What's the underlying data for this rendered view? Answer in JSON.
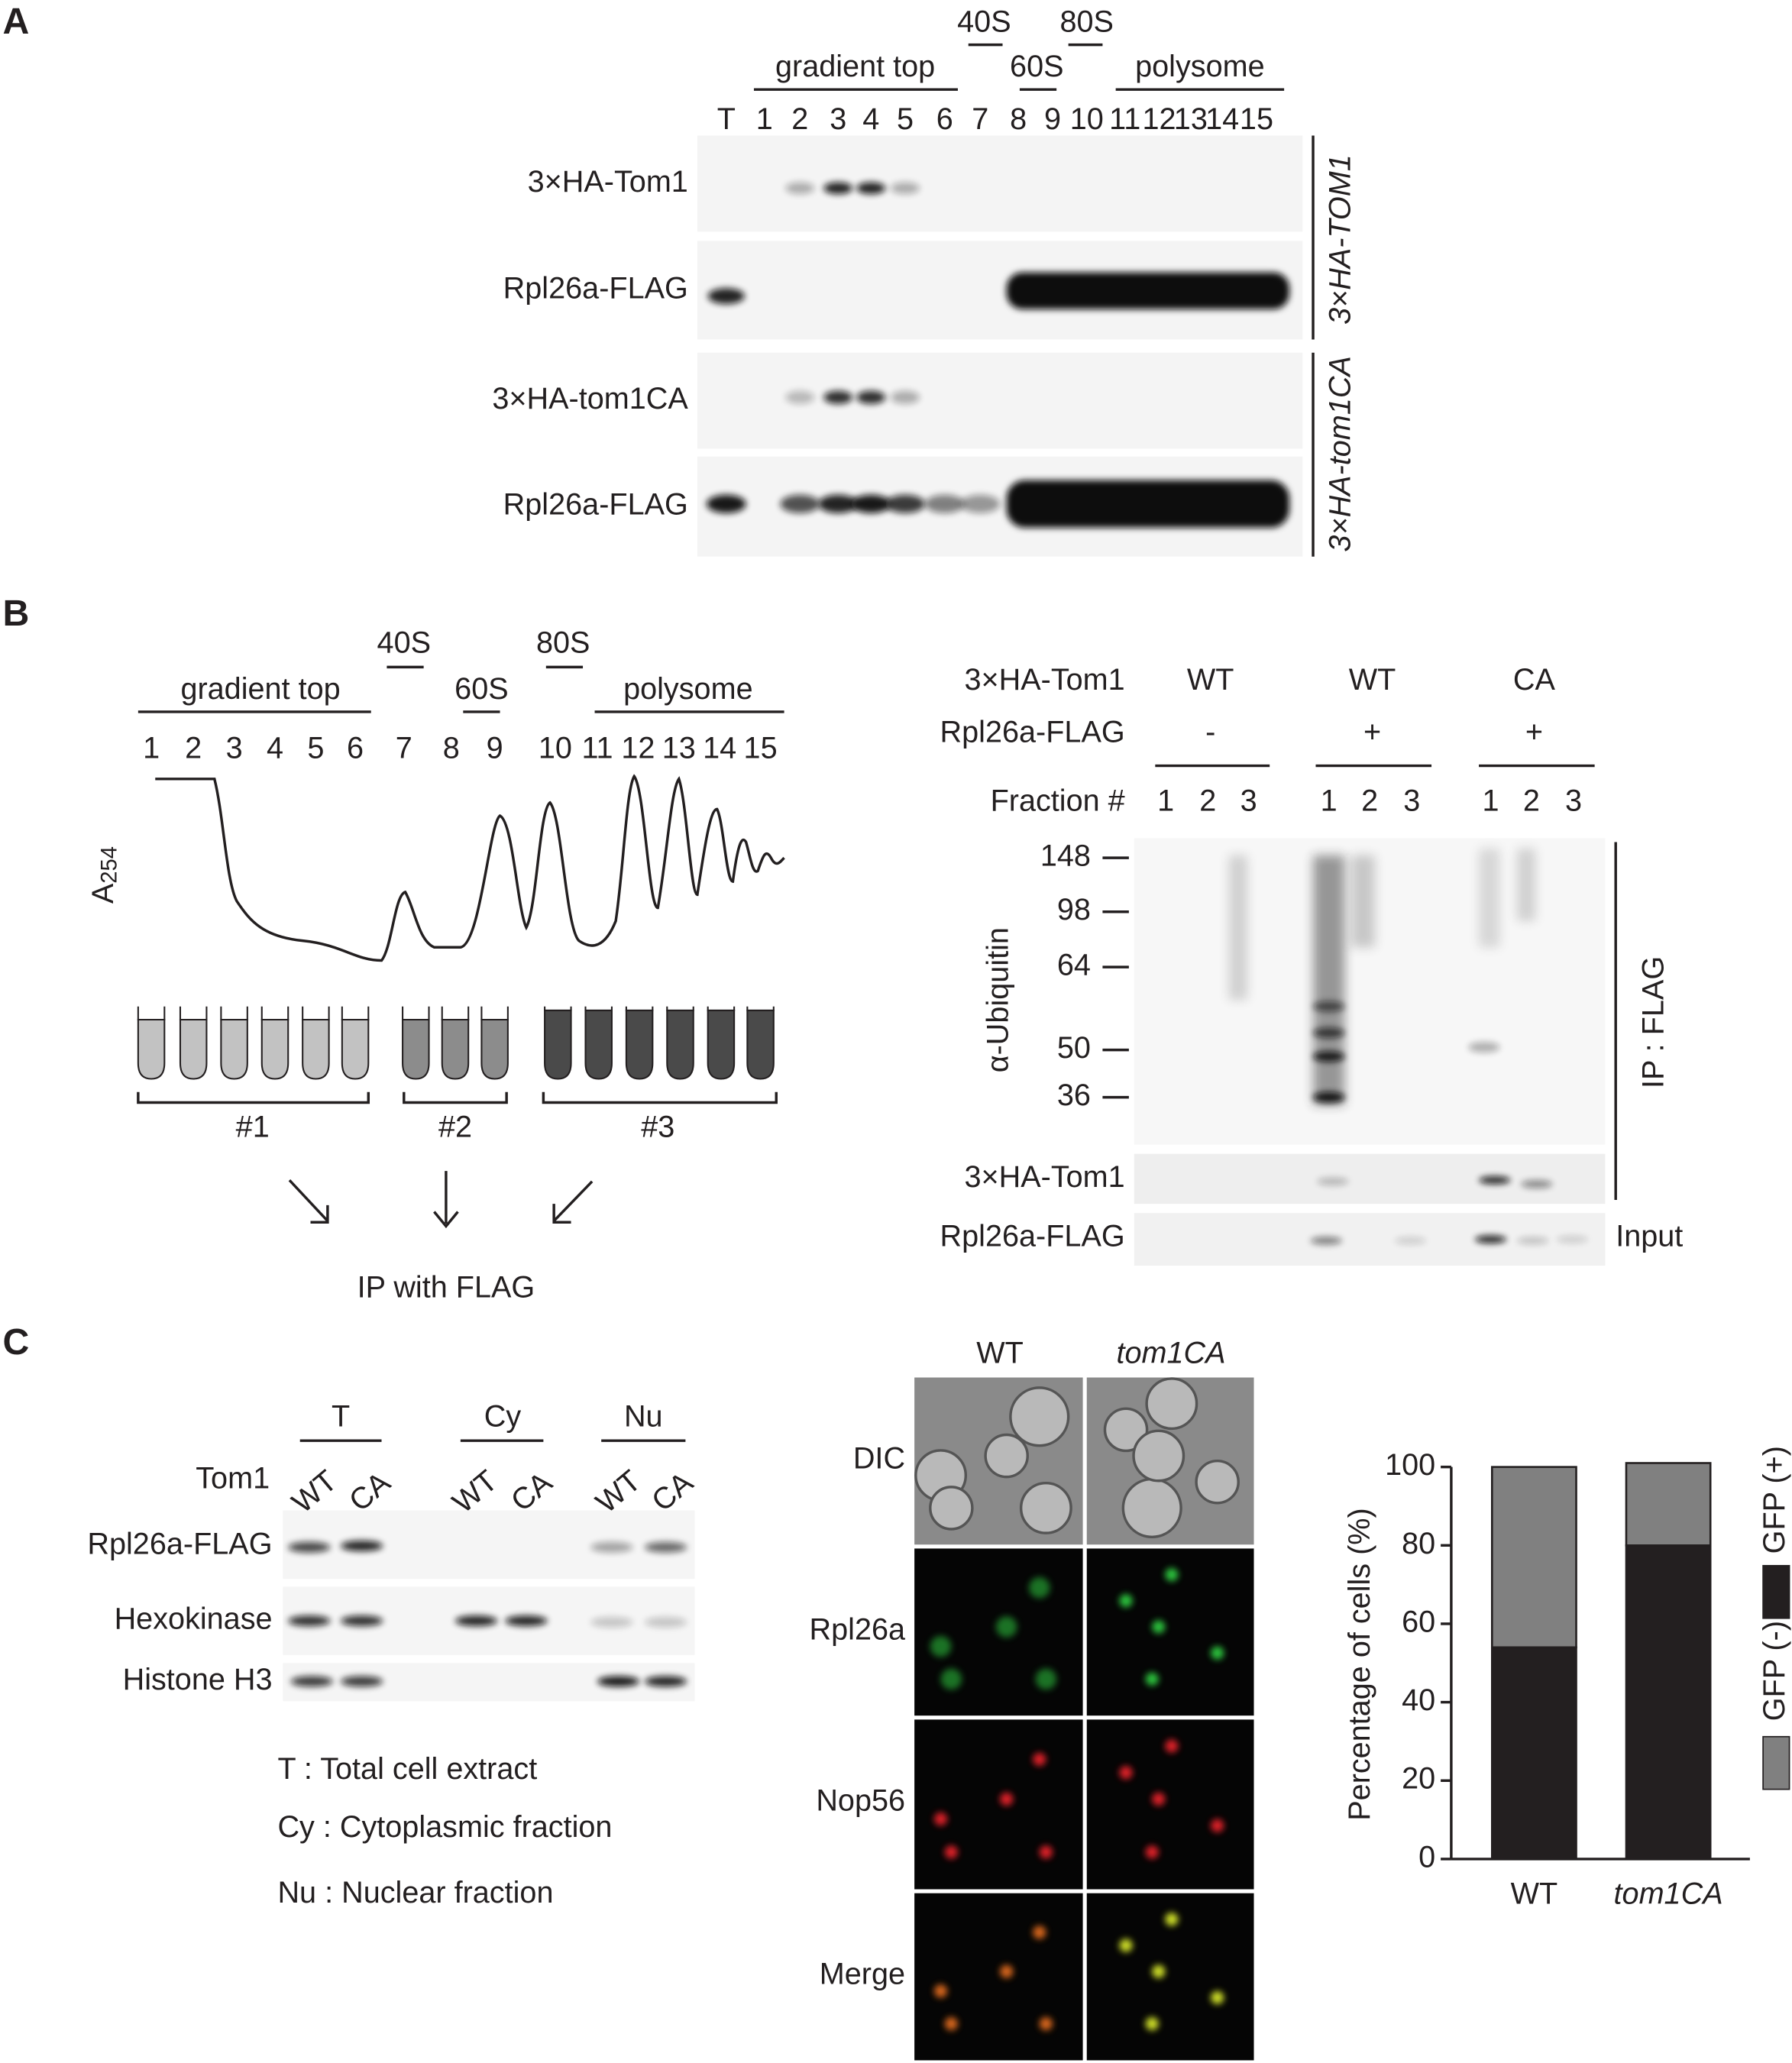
{
  "panel_a": {
    "label": "A",
    "s40": "40S",
    "s80": "80S",
    "s60": "60S",
    "gradient_top": "gradient top",
    "polysome": "polysome",
    "lanes": [
      "T",
      "1",
      "2",
      "3",
      "4",
      "5",
      "6",
      "7",
      "8",
      "9",
      "10",
      "11",
      "12",
      "13",
      "14",
      "15"
    ],
    "rows": [
      "3×HA-Tom1",
      "Rpl26a-FLAG",
      "3×HA-tom1CA",
      "Rpl26a-FLAG"
    ],
    "strains": [
      "3×HA-TOM1",
      "3×HA-tom1CA"
    ]
  },
  "panel_b": {
    "label": "B",
    "s40": "40S",
    "s80": "80S",
    "s60": "60S",
    "gradient_top": "gradient top",
    "polysome": "polysome",
    "fractions": [
      "1",
      "2",
      "3",
      "4",
      "5",
      "6",
      "7",
      "8",
      "9",
      "10",
      "11",
      "12",
      "13",
      "14",
      "15"
    ],
    "y_label": "A",
    "y_label_sub": "254",
    "pools": [
      "#1",
      "#2",
      "#3"
    ],
    "ip_note": "IP with FLAG",
    "table": {
      "rows": [
        [
          "3×HA-Tom1",
          "WT",
          "WT",
          "CA"
        ],
        [
          "Rpl26a-FLAG",
          "-",
          "+",
          "+"
        ]
      ],
      "fraction_label": "Fraction #",
      "fraction_numbers": [
        "1",
        "2",
        "3"
      ]
    },
    "mw_markers": [
      148,
      98,
      64,
      50,
      36
    ],
    "blot_label": "α-Ubiquitin",
    "ip_label": "IP : FLAG",
    "lower_rows": [
      "3×HA-Tom1",
      "Rpl26a-FLAG"
    ],
    "input_label": "Input"
  },
  "panel_c": {
    "label": "C",
    "groups": [
      "T",
      "Cy",
      "Nu"
    ],
    "tom1_label": "Tom1",
    "genotypes": [
      "WT",
      "CA"
    ],
    "rows": [
      "Rpl26a-FLAG",
      "Hexokinase",
      "Histone H3"
    ],
    "legend": [
      "T : Total cell extract",
      "Cy : Cytoplasmic fraction",
      "Nu : Nuclear fraction"
    ],
    "microscopy": {
      "columns": [
        "WT",
        "tom1CA"
      ],
      "rows": [
        "DIC",
        "Rpl26a",
        "Nop56",
        "Merge"
      ]
    }
  },
  "chart_data": {
    "type": "stacked-bar",
    "y_label": "Percentage of cells (%)",
    "categories": [
      "WT",
      "tom1CA"
    ],
    "series": [
      {
        "name": "GFP (+)",
        "color": "#231f20",
        "values": [
          54,
          80
        ]
      },
      {
        "name": "GFP (-)",
        "color": "#808080",
        "values": [
          46,
          21
        ]
      }
    ],
    "ylim": [
      0,
      100
    ],
    "yticks": [
      0,
      20,
      40,
      60,
      80,
      100
    ]
  }
}
